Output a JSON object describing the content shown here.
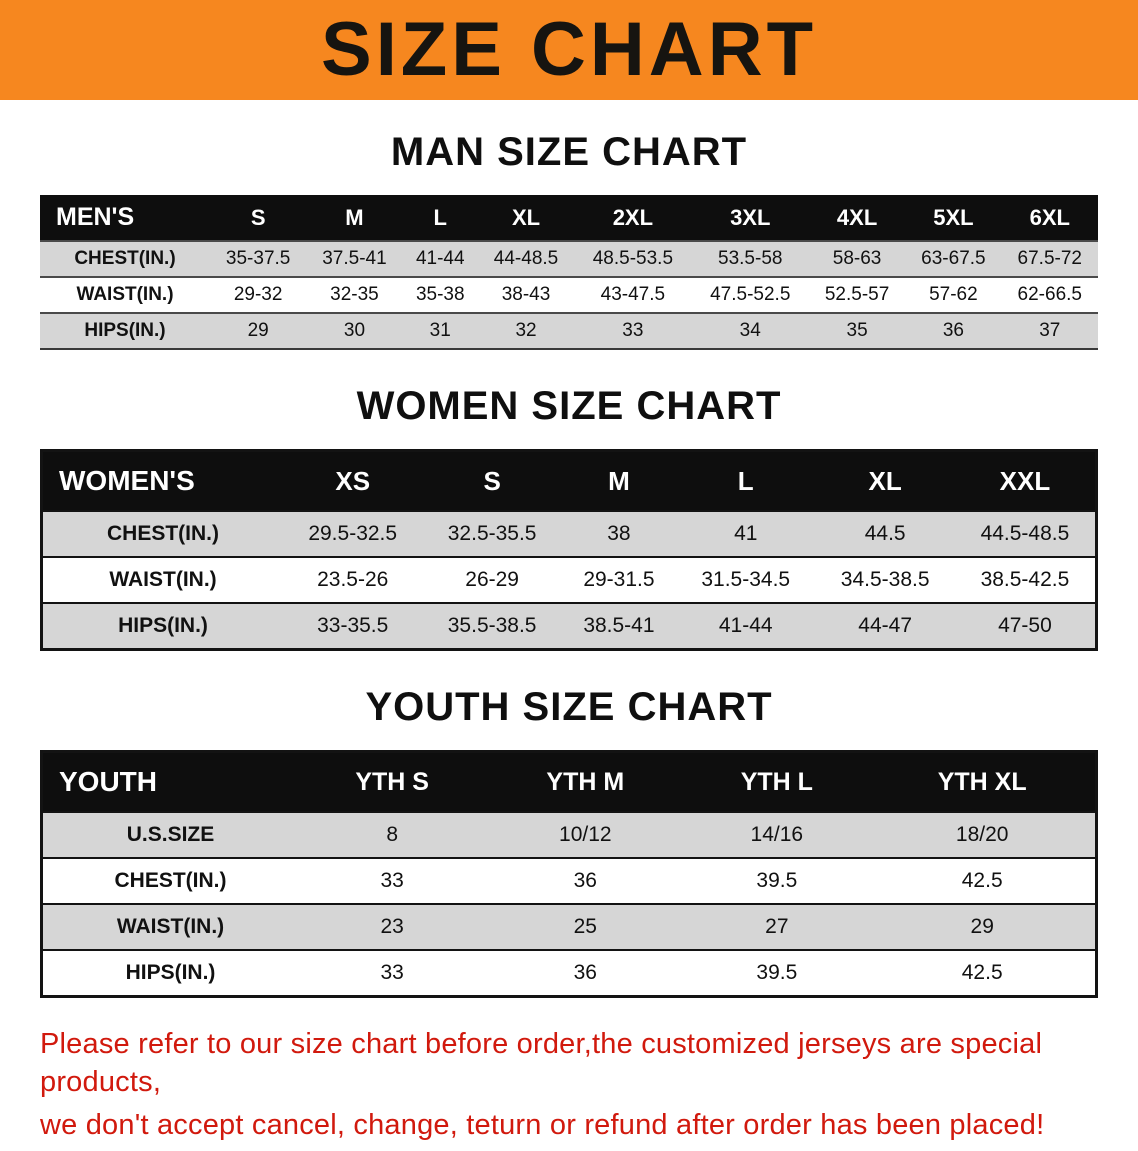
{
  "banner": {
    "title": "SIZE CHART"
  },
  "colors": {
    "banner_bg": "#f6871f",
    "table_header_bg": "#0e0e0e",
    "row_stripe": "#d6d6d6",
    "notice_text": "#d1190d"
  },
  "chart_data": [
    {
      "type": "table",
      "title": "MAN SIZE CHART",
      "header": [
        "MEN'S",
        "S",
        "M",
        "L",
        "XL",
        "2XL",
        "3XL",
        "4XL",
        "5XL",
        "6XL"
      ],
      "rows": [
        {
          "label": "CHEST(IN.)",
          "values": [
            "35-37.5",
            "37.5-41",
            "41-44",
            "44-48.5",
            "48.5-53.5",
            "53.5-58",
            "58-63",
            "63-67.5",
            "67.5-72"
          ]
        },
        {
          "label": "WAIST(IN.)",
          "values": [
            "29-32",
            "32-35",
            "35-38",
            "38-43",
            "43-47.5",
            "47.5-52.5",
            "52.5-57",
            "57-62",
            "62-66.5"
          ]
        },
        {
          "label": "HIPS(IN.)",
          "values": [
            "29",
            "30",
            "31",
            "32",
            "33",
            "34",
            "35",
            "36",
            "37"
          ]
        }
      ]
    },
    {
      "type": "table",
      "title": "WOMEN SIZE CHART",
      "header": [
        "WOMEN'S",
        "XS",
        "S",
        "M",
        "L",
        "XL",
        "XXL"
      ],
      "rows": [
        {
          "label": "CHEST(IN.)",
          "values": [
            "29.5-32.5",
            "32.5-35.5",
            "38",
            "41",
            "44.5",
            "44.5-48.5"
          ]
        },
        {
          "label": "WAIST(IN.)",
          "values": [
            "23.5-26",
            "26-29",
            "29-31.5",
            "31.5-34.5",
            "34.5-38.5",
            "38.5-42.5"
          ]
        },
        {
          "label": "HIPS(IN.)",
          "values": [
            "33-35.5",
            "35.5-38.5",
            "38.5-41",
            "41-44",
            "44-47",
            "47-50"
          ]
        }
      ]
    },
    {
      "type": "table",
      "title": "YOUTH SIZE CHART",
      "header": [
        "YOUTH",
        "YTH S",
        "YTH M",
        "YTH L",
        "YTH XL"
      ],
      "rows": [
        {
          "label": "U.S.SIZE",
          "values": [
            "8",
            "10/12",
            "14/16",
            "18/20"
          ]
        },
        {
          "label": "CHEST(IN.)",
          "values": [
            "33",
            "36",
            "39.5",
            "42.5"
          ]
        },
        {
          "label": "WAIST(IN.)",
          "values": [
            "23",
            "25",
            "27",
            "29"
          ]
        },
        {
          "label": "HIPS(IN.)",
          "values": [
            "33",
            "36",
            "39.5",
            "42.5"
          ]
        }
      ]
    }
  ],
  "footer": {
    "line1": "Please refer to our size chart before order,the customized jerseys are special products,",
    "line2": "we don't accept cancel, change, teturn or refund after order has been placed!"
  }
}
